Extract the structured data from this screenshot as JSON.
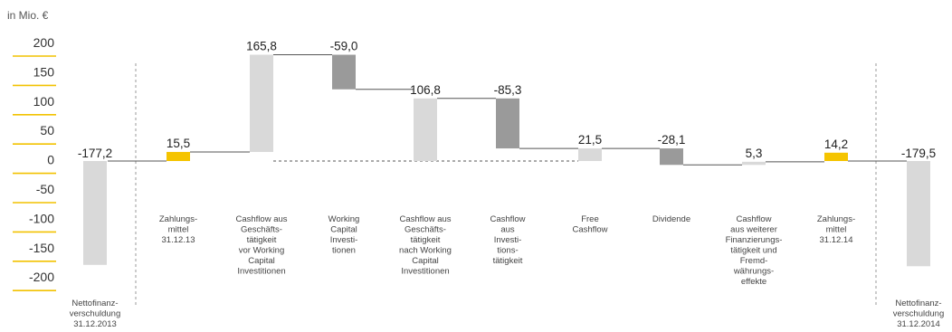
{
  "chart_data": {
    "type": "bar",
    "unit_label": "in Mio. €",
    "ylim": [
      -200,
      200
    ],
    "y_ticks": [
      "200",
      "150",
      "100",
      "50",
      "0",
      "-50",
      "-100",
      "-150",
      "-200"
    ],
    "bars": [
      {
        "kind": "total",
        "value": -177.2,
        "label": "-177,2",
        "category": [
          "Nettofinanz-",
          "verschuldung",
          "31.12.2013"
        ]
      },
      {
        "kind": "total",
        "value": 15.5,
        "label": "15,5",
        "category": [
          "Zahlungs-",
          "mittel",
          "31.12.13"
        ]
      },
      {
        "kind": "step",
        "value": 165.8,
        "label": "165,8",
        "category": [
          "Cashflow aus",
          "Geschäfts-",
          "tätigkeit",
          "vor Working",
          "Capital",
          "Investitionen"
        ]
      },
      {
        "kind": "step",
        "value": -59.0,
        "label": "-59,0",
        "category": [
          "Working",
          "Capital",
          "Investi-",
          "tionen"
        ]
      },
      {
        "kind": "subtotal",
        "value": 106.8,
        "label": "106,8",
        "category": [
          "Cashflow aus",
          "Geschäfts-",
          "tätigkeit",
          "nach Working",
          "Capital",
          "Investitionen"
        ]
      },
      {
        "kind": "step",
        "value": -85.3,
        "label": "-85,3",
        "category": [
          "Cashflow",
          "aus",
          "Investi-",
          "tions-",
          "tätigkeit"
        ]
      },
      {
        "kind": "subtotal",
        "value": 21.5,
        "label": "21,5",
        "category": [
          "Free",
          "Cashflow"
        ]
      },
      {
        "kind": "step",
        "value": -28.1,
        "label": "-28,1",
        "category": [
          "Dividende"
        ]
      },
      {
        "kind": "step",
        "value": 5.3,
        "label": "5,3",
        "category": [
          "Cashflow",
          "aus weiterer",
          "Finanzierungs-",
          "tätigkeit und",
          "Fremd-",
          "währungs-",
          "effekte"
        ]
      },
      {
        "kind": "total",
        "value": 14.2,
        "label": "14,2",
        "category": [
          "Zahlungs-",
          "mittel",
          "31.12.14"
        ]
      },
      {
        "kind": "total",
        "value": -179.5,
        "label": "-179,5",
        "category": [
          "Nettofinanz-",
          "verschuldung",
          "31.12.2014"
        ]
      }
    ],
    "colors": {
      "highlight": "#f5c400",
      "tick_rule": "#f2c200",
      "bar_light": "#d9d9d9",
      "bar_dark": "#9a9a9a",
      "connector": "#555555",
      "divider": "#9a9a9a"
    }
  }
}
